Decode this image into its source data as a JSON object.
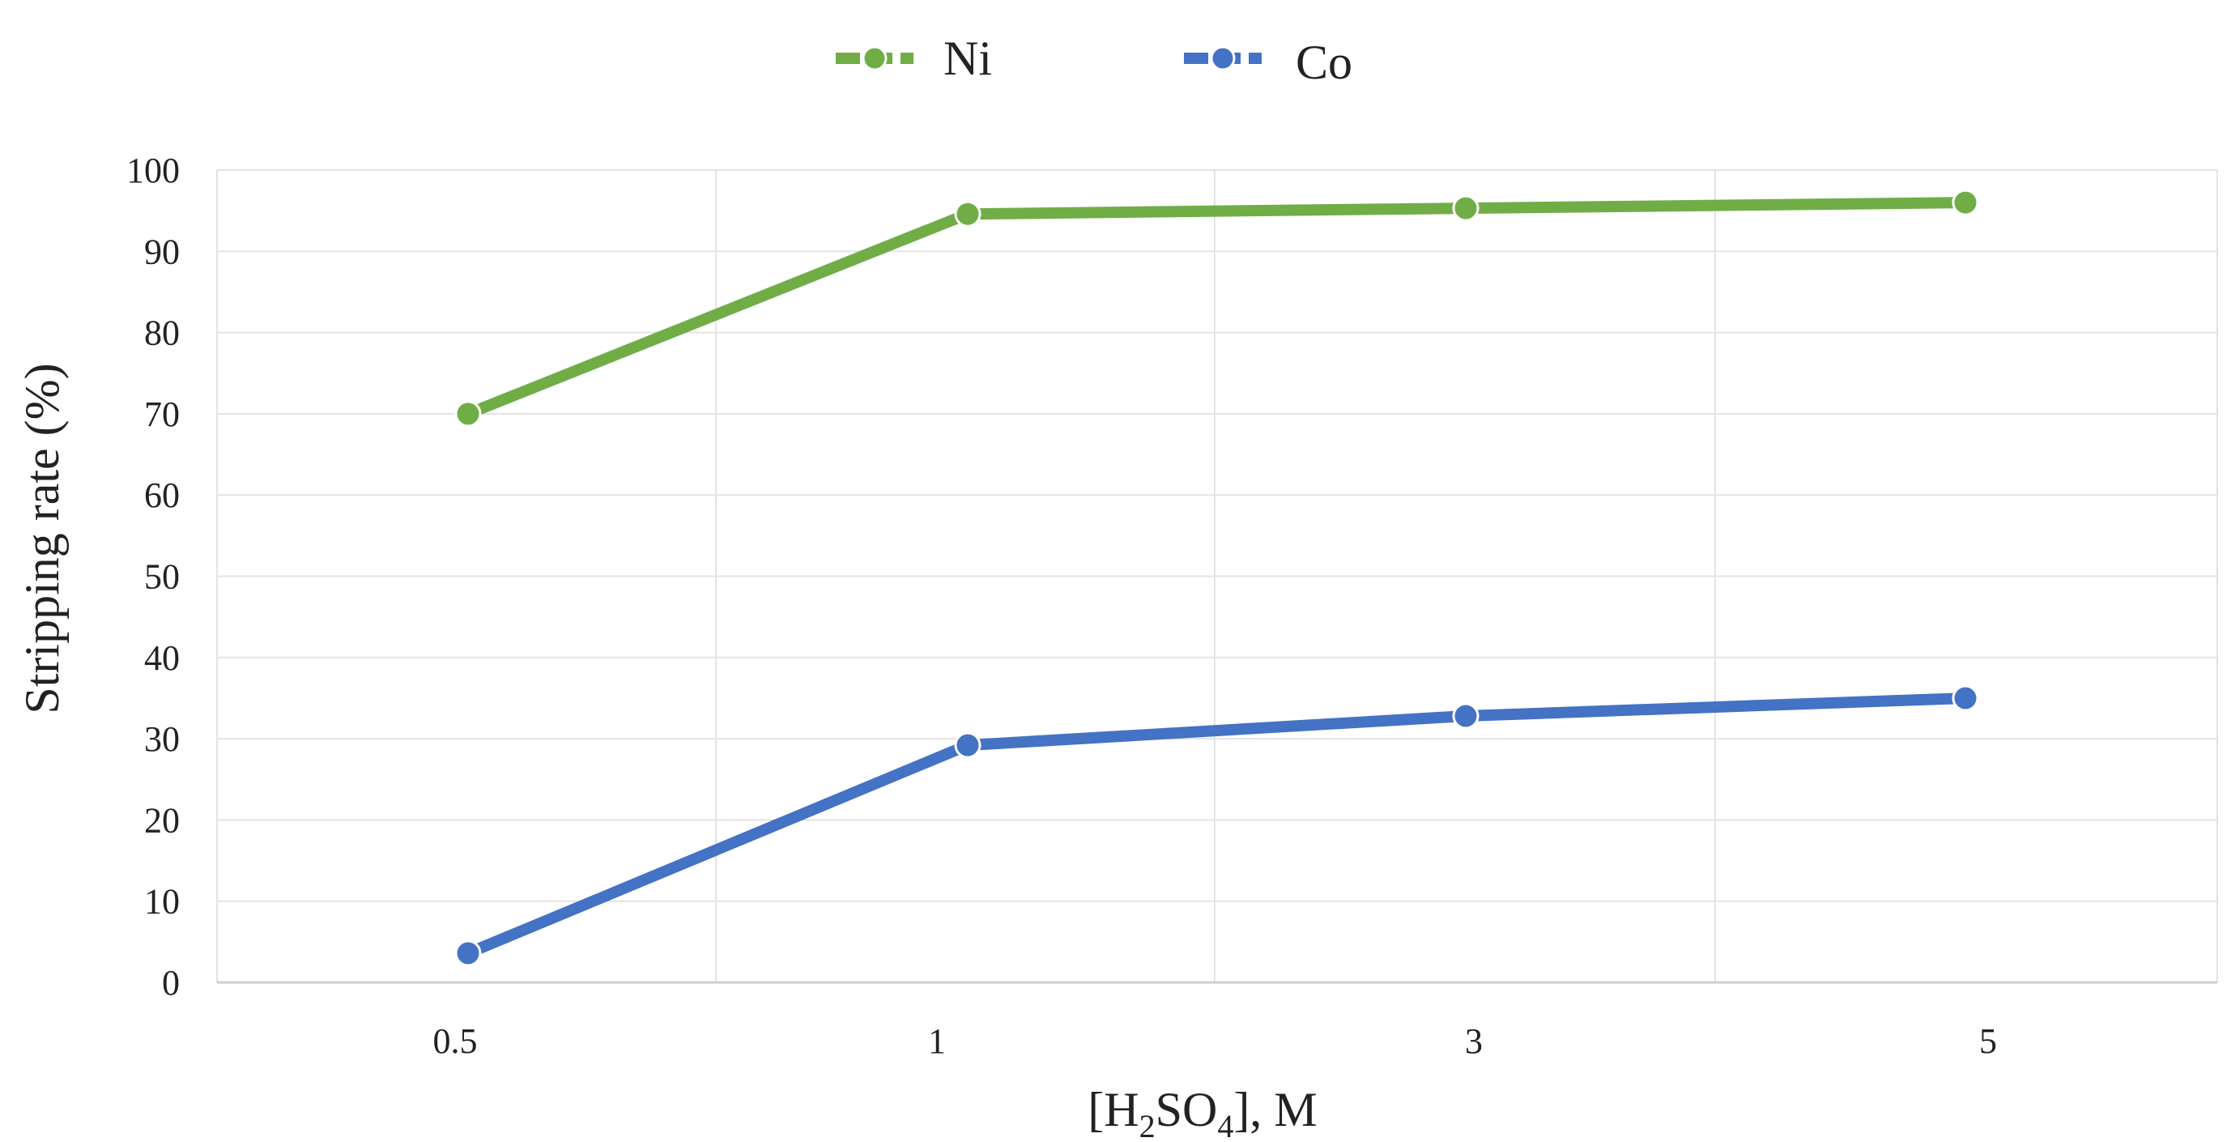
{
  "chart_data": {
    "type": "line",
    "title": "",
    "categories": [
      "0.5",
      "1",
      "3",
      "5"
    ],
    "series": [
      {
        "name": "Ni",
        "color": "#70AD47",
        "values": [
          70,
          94.6,
          95.3,
          96
        ]
      },
      {
        "name": "Co",
        "color": "#4472C4",
        "values": [
          3.6,
          29.2,
          32.8,
          35
        ]
      }
    ],
    "xlabel_parts": {
      "pre": "[H",
      "sub1": "2",
      "mid": "SO",
      "sub2": "4",
      "post": "], M"
    },
    "ylabel": "Stripping rate (%)",
    "ylim": [
      0,
      100
    ],
    "yticks": [
      "0",
      "10",
      "20",
      "30",
      "40",
      "50",
      "60",
      "70",
      "80",
      "90",
      "100"
    ],
    "grid": true,
    "legend_position": "top"
  }
}
